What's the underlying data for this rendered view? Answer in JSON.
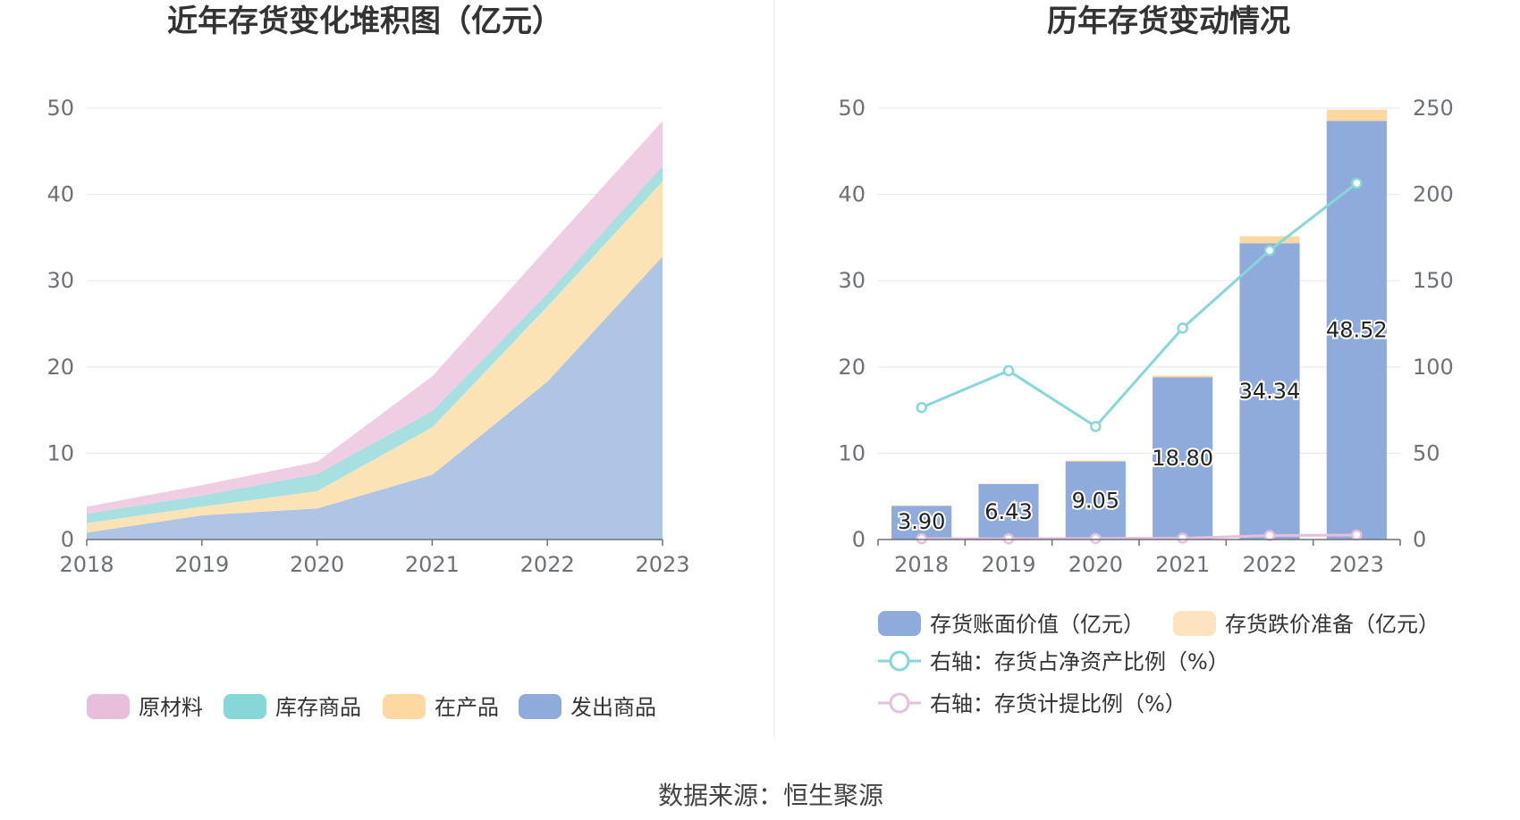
{
  "left_chart": {
    "title": "近年存货变化堆积图（亿元）",
    "legend": [
      {
        "label": "原材料",
        "color": "#e7bfdc"
      },
      {
        "label": "库存商品",
        "color": "#86d7d8"
      },
      {
        "label": "在产品",
        "color": "#fdd8a0"
      },
      {
        "label": "发出商品",
        "color": "#8fabdc"
      }
    ]
  },
  "right_chart": {
    "title": "历年存货变动情况",
    "legend": [
      {
        "label": "存货账面价值（亿元）",
        "color": "#8fabdc"
      },
      {
        "label": "存货跌价准备（亿元）",
        "color": "#fde3bf"
      },
      {
        "label": "右轴：存货占净资产比例（%）",
        "color": "#86d7d8"
      },
      {
        "label": "右轴：存货计提比例（%）",
        "color": "#e7bfdc"
      }
    ]
  },
  "source": "数据来源：恒生聚源",
  "chart_data": [
    {
      "type": "area",
      "stacked": true,
      "title": "近年存货变化堆积图（亿元）",
      "x": [
        "2018",
        "2019",
        "2020",
        "2021",
        "2022",
        "2023"
      ],
      "ylim": [
        0,
        50
      ],
      "yticks": [
        0,
        10,
        20,
        30,
        40,
        50
      ],
      "grid": true,
      "legend_position": "bottom",
      "series": [
        {
          "name": "发出商品",
          "color": "#afc5e6",
          "values": [
            0.8,
            2.8,
            3.6,
            7.5,
            18.3,
            32.8
          ]
        },
        {
          "name": "在产品",
          "color": "#fce3b6",
          "values": [
            1.1,
            1.0,
            2.0,
            5.5,
            8.7,
            8.7
          ]
        },
        {
          "name": "库存商品",
          "color": "#a8e0e2",
          "values": [
            1.1,
            1.3,
            2.0,
            1.9,
            1.5,
            1.8
          ]
        },
        {
          "name": "原材料",
          "color": "#efcde3",
          "values": [
            0.8,
            1.2,
            1.4,
            4.0,
            5.3,
            5.2
          ]
        }
      ]
    },
    {
      "type": "bar",
      "stacked": true,
      "title": "历年存货变动情况",
      "categories": [
        "2018",
        "2019",
        "2020",
        "2021",
        "2022",
        "2023"
      ],
      "ylim": [
        0,
        50
      ],
      "yticks": [
        0,
        10,
        20,
        30,
        40,
        50
      ],
      "y2lim": [
        0,
        250
      ],
      "y2ticks": [
        0,
        50,
        100,
        150,
        200,
        250
      ],
      "grid": true,
      "legend_position": "bottom",
      "series": [
        {
          "name": "存货账面价值（亿元）",
          "color": "#8fabdc",
          "values": [
            3.9,
            6.43,
            9.05,
            18.8,
            34.34,
            48.52
          ],
          "labels": [
            "3.90",
            "6.43",
            "9.05",
            "18.80",
            "34.34",
            "48.52"
          ]
        },
        {
          "name": "存货跌价准备（亿元）",
          "color": "#fdd8a0",
          "values": [
            0.05,
            0.05,
            0.1,
            0.2,
            0.8,
            1.3
          ]
        }
      ],
      "lines": [
        {
          "name": "右轴：存货占净资产比例（%）",
          "axis": "right",
          "color": "#86d7d8",
          "values": [
            76.5,
            97.8,
            65.5,
            122.5,
            167.5,
            206.5
          ]
        },
        {
          "name": "右轴：存货计提比例（%）",
          "axis": "right",
          "color": "#e7bfdc",
          "values": [
            0.5,
            0.4,
            0.6,
            0.8,
            2.3,
            2.6
          ]
        }
      ]
    }
  ]
}
